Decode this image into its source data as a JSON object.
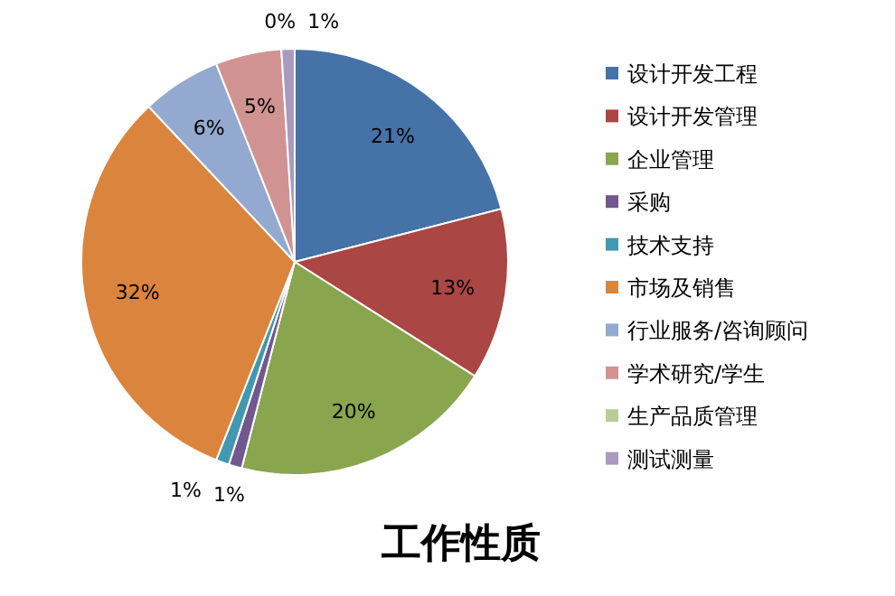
{
  "chart_data": {
    "type": "pie",
    "title": "工作性质",
    "categories": [
      "设计开发工程",
      "设计开发管理",
      "企业管理",
      "采购",
      "技术支持",
      "市场及销售",
      "行业服务/咨询顾问",
      "学术研究/学生",
      "生产品质管理",
      "测试测量"
    ],
    "values": [
      21,
      13,
      20,
      1,
      1,
      32,
      6,
      5,
      0,
      1
    ],
    "value_labels": [
      "21%",
      "13%",
      "20%",
      "1%",
      "1%",
      "32%",
      "6%",
      "5%",
      "0%",
      "1%"
    ],
    "colors": [
      "#4572a7",
      "#aa4643",
      "#89a54e",
      "#71588f",
      "#4198af",
      "#db843d",
      "#93a9cf",
      "#d19392",
      "#b9cd96",
      "#a99bbd"
    ],
    "legend": "right"
  }
}
